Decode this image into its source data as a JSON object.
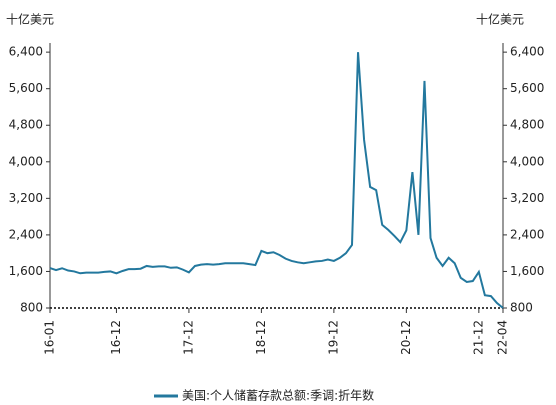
{
  "chart_data": {
    "type": "line",
    "y_label": "十亿美元",
    "y2_label": "十亿美元",
    "categories": [
      "16-01",
      null,
      null,
      null,
      null,
      null,
      null,
      null,
      null,
      null,
      null,
      "16-12",
      null,
      null,
      null,
      null,
      null,
      null,
      null,
      null,
      null,
      null,
      null,
      "17-12",
      null,
      null,
      null,
      null,
      null,
      null,
      null,
      null,
      null,
      null,
      null,
      "18-12",
      null,
      null,
      null,
      null,
      null,
      null,
      null,
      null,
      null,
      null,
      null,
      "19-12",
      null,
      null,
      null,
      null,
      null,
      null,
      null,
      null,
      null,
      null,
      null,
      "20-12",
      null,
      null,
      null,
      null,
      null,
      null,
      null,
      null,
      null,
      null,
      null,
      "21-12",
      null,
      null,
      null,
      "22-04"
    ],
    "series": [
      {
        "name": "美国:个人储蓄存款总额:季调:折年数",
        "color": "#23789e",
        "values": [
          1675,
          1630,
          1670,
          1620,
          1600,
          1560,
          1575,
          1575,
          1575,
          1590,
          1600,
          1560,
          1610,
          1650,
          1650,
          1660,
          1720,
          1700,
          1710,
          1710,
          1680,
          1690,
          1640,
          1580,
          1720,
          1750,
          1760,
          1750,
          1760,
          1780,
          1780,
          1780,
          1780,
          1760,
          1740,
          2050,
          2000,
          2020,
          1960,
          1880,
          1830,
          1800,
          1780,
          1800,
          1820,
          1830,
          1860,
          1830,
          1900,
          2000,
          2180,
          6400,
          4480,
          3450,
          3380,
          2620,
          2510,
          2380,
          2240,
          2500,
          3775,
          2400,
          5770,
          2330,
          1900,
          1720,
          1900,
          1780,
          1460,
          1370,
          1390,
          1590,
          1080,
          1060,
          910,
          800
        ]
      }
    ],
    "ylim": [
      800,
      6600
    ],
    "yticks": [
      800,
      {
        "value": 1600,
        "label": "1,600"
      },
      {
        "value": 2400,
        "label": "2,400"
      },
      {
        "value": 3200,
        "label": "3,200"
      },
      {
        "value": 4000,
        "label": "4,000"
      },
      {
        "value": 4800,
        "label": "4,800"
      },
      {
        "value": 5600,
        "label": "5,600"
      },
      {
        "value": 6400,
        "label": "6,400"
      }
    ],
    "y2lim": [
      800,
      6600
    ],
    "y2ticks": [
      800,
      {
        "value": 1600,
        "label": "1,600"
      },
      {
        "value": 2400,
        "label": "2,400"
      },
      {
        "value": 3200,
        "label": "3,200"
      },
      {
        "value": 4000,
        "label": "4,000"
      },
      {
        "value": 4800,
        "label": "4,800"
      },
      {
        "value": 5600,
        "label": "5,600"
      },
      {
        "value": 6400,
        "label": "6,400"
      }
    ]
  }
}
